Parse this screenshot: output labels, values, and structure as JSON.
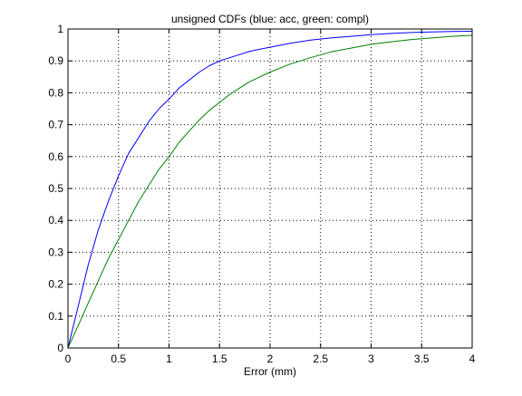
{
  "chart_data": {
    "type": "line",
    "title": "unsigned CDFs (blue: acc, green: compl)",
    "xlabel": "Error (mm)",
    "ylabel": "",
    "xlim": [
      0,
      4
    ],
    "ylim": [
      0,
      1
    ],
    "xticks": [
      "0",
      "0.5",
      "1",
      "1.5",
      "2",
      "2.5",
      "3",
      "3.5",
      "4"
    ],
    "yticks": [
      "0",
      "0.1",
      "0.2",
      "0.3",
      "0.4",
      "0.5",
      "0.6",
      "0.7",
      "0.8",
      "0.9",
      "1"
    ],
    "grid": true,
    "x": [
      0,
      0.1,
      0.2,
      0.3,
      0.4,
      0.5,
      0.6,
      0.7,
      0.8,
      0.9,
      1.0,
      1.1,
      1.2,
      1.3,
      1.4,
      1.5,
      1.6,
      1.7,
      1.8,
      1.9,
      2.0,
      2.2,
      2.4,
      2.6,
      2.8,
      3.0,
      3.2,
      3.4,
      3.6,
      3.8,
      4.0
    ],
    "series": [
      {
        "color": "#0000ff",
        "values": [
          0.0,
          0.13,
          0.26,
          0.37,
          0.46,
          0.54,
          0.61,
          0.66,
          0.71,
          0.75,
          0.78,
          0.815,
          0.84,
          0.865,
          0.885,
          0.9,
          0.91,
          0.92,
          0.93,
          0.937,
          0.943,
          0.955,
          0.965,
          0.972,
          0.977,
          0.982,
          0.986,
          0.989,
          0.991,
          0.992,
          0.993
        ]
      },
      {
        "color": "#008000",
        "values": [
          0.0,
          0.07,
          0.14,
          0.21,
          0.28,
          0.34,
          0.4,
          0.46,
          0.51,
          0.56,
          0.6,
          0.645,
          0.68,
          0.715,
          0.745,
          0.77,
          0.795,
          0.815,
          0.835,
          0.85,
          0.865,
          0.89,
          0.91,
          0.928,
          0.94,
          0.952,
          0.96,
          0.967,
          0.972,
          0.977,
          0.98
        ]
      }
    ]
  }
}
